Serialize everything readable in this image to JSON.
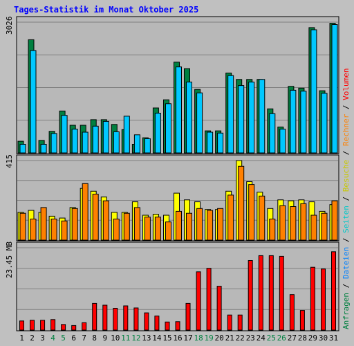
{
  "colors": {
    "background": "#c0c0c0",
    "plot_bg": "#b8b8b8",
    "title": "#0000ff",
    "anfragen": "#008040",
    "dateien": "#00c8ff",
    "seiten": "#00c8c8",
    "besuche": "#ffff00",
    "rechner": "#ff8000",
    "volumen": "#ff0000",
    "weekend_label": "#008040",
    "weekday_label": "#000000"
  },
  "chart_data": {
    "type": "bar",
    "title": "Tages-Statistik im Monat Oktober 2025",
    "categories": [
      "1",
      "2",
      "3",
      "4",
      "5",
      "6",
      "7",
      "8",
      "9",
      "10",
      "11",
      "12",
      "13",
      "14",
      "15",
      "16",
      "17",
      "18",
      "19",
      "20",
      "21",
      "22",
      "23",
      "24",
      "25",
      "26",
      "27",
      "28",
      "29",
      "30",
      "31"
    ],
    "weekend_days": [
      "4",
      "5",
      "11",
      "12",
      "18",
      "19",
      "25",
      "26"
    ],
    "panels": [
      {
        "id": "requests",
        "max_label": "3026",
        "ymax": 3026,
        "grid": true,
        "series": [
          {
            "name": "Anfragen",
            "key": "anfragen",
            "values": [
              270,
              2620,
              290,
              500,
              970,
              640,
              640,
              770,
              770,
              660,
              540,
              200,
              350,
              1040,
              1230,
              2100,
              1950,
              1470,
              510,
              510,
              1850,
              1700,
              1700,
              1700,
              1020,
              600,
              1540,
              1500,
              2900,
              1440,
              3000
            ]
          },
          {
            "name": "Dateien",
            "key": "dateien",
            "values": [
              200,
              2370,
              200,
              450,
              870,
              550,
              480,
              620,
              730,
              490,
              850,
              420,
              330,
              920,
              1140,
              1990,
              1640,
              1390,
              480,
              460,
              1790,
              1560,
              1640,
              1700,
              910,
              550,
              1450,
              1430,
              2850,
              1380,
              2970
            ]
          }
        ]
      },
      {
        "id": "visits",
        "max_label": "415",
        "ymax": 415,
        "grid": true,
        "series": [
          {
            "name": "Besuche",
            "key": "besuche",
            "values": [
              145,
              155,
              145,
              125,
              115,
              170,
              270,
              255,
              225,
              145,
              145,
              200,
              130,
              135,
              130,
              245,
              210,
              200,
              160,
              160,
              255,
              415,
              305,
              250,
              165,
              210,
              205,
              210,
              200,
              150,
              185
            ]
          },
          {
            "name": "Rechner",
            "key": "rechner",
            "values": [
              140,
              110,
              170,
              110,
              100,
              165,
              295,
              240,
              205,
              110,
              140,
              170,
              120,
              120,
              95,
              150,
              140,
              165,
              155,
              165,
              235,
              385,
              290,
              230,
              110,
              180,
              175,
              190,
              130,
              140,
              205
            ]
          }
        ]
      },
      {
        "id": "volume",
        "max_label": "23.45 MB",
        "ymax": 23.45,
        "grid": true,
        "series": [
          {
            "name": "Volumen",
            "key": "volumen",
            "values": [
              2.6,
              2.8,
              2.8,
              3.0,
              1.6,
              1.3,
              2.1,
              7.6,
              7.1,
              6.2,
              6.9,
              6.3,
              4.9,
              4.0,
              2.3,
              2.4,
              7.6,
              16.6,
              17.6,
              12.5,
              4.3,
              4.3,
              19.8,
              21.2,
              21.2,
              21.0,
              10.1,
              5.6,
              17.9,
              17.4,
              22.3
            ]
          }
        ]
      }
    ],
    "right_legend": [
      {
        "label": "Anfragen",
        "color": "#008040"
      },
      {
        "label": "Dateien",
        "color": "#0080ff"
      },
      {
        "label": "Seiten",
        "color": "#00c8c8"
      },
      {
        "label": "Besuche",
        "color": "#c8c800"
      },
      {
        "label": "Rechner",
        "color": "#ff8000"
      },
      {
        "label": "Volumen",
        "color": "#ff0000"
      }
    ],
    "legend_separator": "/"
  }
}
